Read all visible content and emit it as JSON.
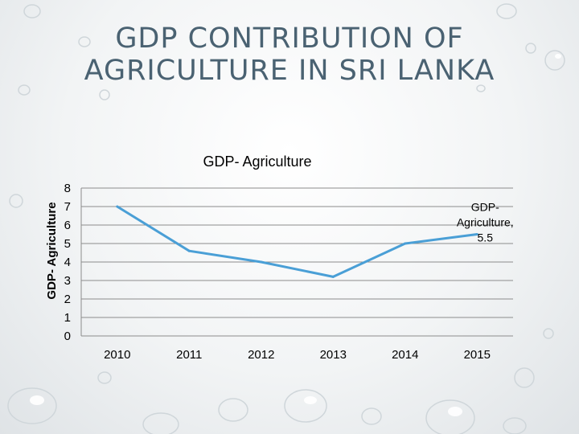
{
  "slide": {
    "title_line1": "GDP CONTRIBUTION OF",
    "title_line2": "AGRICULTURE IN SRI LANKA"
  },
  "chart_data": {
    "type": "line",
    "title": "GDP- Agriculture",
    "ylabel": "GDP- Agriculture",
    "xlabel": "",
    "categories": [
      "2010",
      "2011",
      "2012",
      "2013",
      "2014",
      "2015"
    ],
    "series": [
      {
        "name": "GDP- Agriculture",
        "values": [
          7.0,
          4.6,
          4.0,
          3.2,
          5.0,
          5.5
        ]
      }
    ],
    "ylim": [
      0,
      8
    ],
    "yticks": [
      "0",
      "1",
      "2",
      "3",
      "4",
      "5",
      "6",
      "7",
      "8"
    ],
    "grid": true,
    "data_label": {
      "lines": [
        "GDP-",
        "Agriculture,",
        "5.5"
      ]
    },
    "colors": {
      "line": "#4a9fd6",
      "grid": "#8c8c8c",
      "title": "#4a6272"
    }
  }
}
